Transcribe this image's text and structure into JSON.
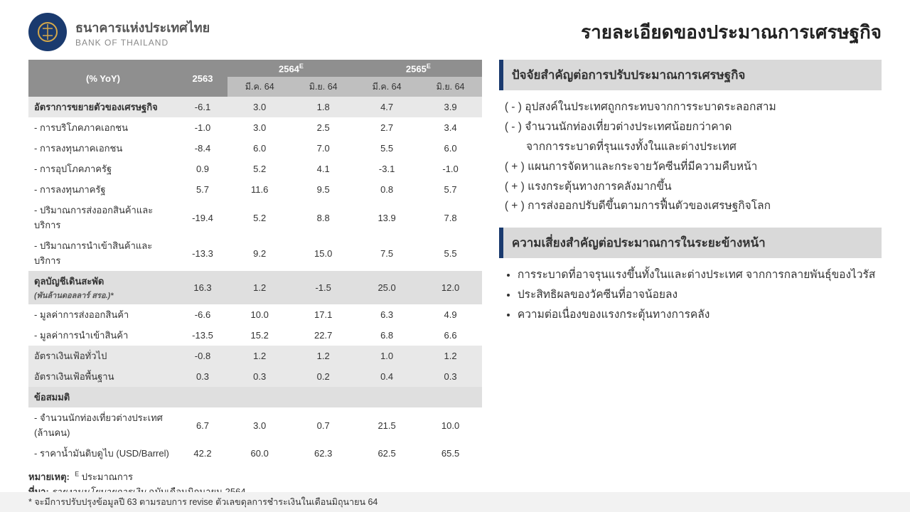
{
  "logo": {
    "th": "ธนาคารแห่งประเทศไทย",
    "en": "BANK OF THAILAND"
  },
  "title": "รายละเอียดของประมาณการเศรษฐกิจ",
  "table": {
    "head": {
      "pct": "(% YoY)",
      "y2563": "2563",
      "y2564": "2564",
      "y2565": "2565",
      "sup": "E",
      "mar64": "มี.ค. 64",
      "jun64": "มิ.ย. 64"
    },
    "rows": [
      {
        "cls": "shade-gdp row-section",
        "label": "อัตราการขยายตัวของเศรษฐกิจ",
        "v": [
          "-6.1",
          "3.0",
          "1.8",
          "4.7",
          "3.9"
        ]
      },
      {
        "cls": "",
        "label": "- การบริโภคภาคเอกชน",
        "v": [
          "-1.0",
          "3.0",
          "2.5",
          "2.7",
          "3.4"
        ]
      },
      {
        "cls": "",
        "label": "- การลงทุนภาคเอกชน",
        "v": [
          "-8.4",
          "6.0",
          "7.0",
          "5.5",
          "6.0"
        ]
      },
      {
        "cls": "",
        "label": "- การอุปโภคภาครัฐ",
        "v": [
          "0.9",
          "5.2",
          "4.1",
          "-3.1",
          "-1.0"
        ]
      },
      {
        "cls": "",
        "label": "- การลงทุนภาครัฐ",
        "v": [
          "5.7",
          "11.6",
          "9.5",
          "0.8",
          "5.7"
        ]
      },
      {
        "cls": "",
        "label": "- ปริมาณการส่งออกสินค้าและบริการ",
        "v": [
          "-19.4",
          "5.2",
          "8.8",
          "13.9",
          "7.8"
        ]
      },
      {
        "cls": "",
        "label": "- ปริมาณการนำเข้าสินค้าและบริการ",
        "v": [
          "-13.3",
          "9.2",
          "15.0",
          "7.5",
          "5.5"
        ]
      },
      {
        "cls": "shade-ca row-section",
        "label": "ดุลบัญชีเดินสะพัด<br><span class='small-note'>(พันล้านดอลลาร์ สรอ.)*</span>",
        "v": [
          "16.3",
          "1.2",
          "-1.5",
          "25.0",
          "12.0"
        ]
      },
      {
        "cls": "",
        "label": "- มูลค่าการส่งออกสินค้า",
        "v": [
          "-6.6",
          "10.0",
          "17.1",
          "6.3",
          "4.9"
        ]
      },
      {
        "cls": "",
        "label": "- มูลค่าการนำเข้าสินค้า",
        "v": [
          "-13.5",
          "15.2",
          "22.7",
          "6.8",
          "6.6"
        ]
      },
      {
        "cls": "shade-inf",
        "label": "อัตราเงินเฟ้อทั่วไป",
        "v": [
          "-0.8",
          "1.2",
          "1.2",
          "1.0",
          "1.2"
        ]
      },
      {
        "cls": "shade-inf",
        "label": "อัตราเงินเฟ้อพื้นฐาน",
        "v": [
          "0.3",
          "0.3",
          "0.2",
          "0.4",
          "0.3"
        ]
      },
      {
        "cls": "shade-assump row-section",
        "label": "ข้อสมมติ",
        "v": [
          "",
          "",
          "",
          "",
          ""
        ]
      },
      {
        "cls": "",
        "label": "- จำนวนนักท่องเที่ยวต่างประเทศ (ล้านคน)",
        "v": [
          "6.7",
          "3.0",
          "0.7",
          "21.5",
          "10.0"
        ]
      },
      {
        "cls": "",
        "label": "- ราคาน้ำมันดิบดูไบ (USD/Barrel)",
        "v": [
          "42.2",
          "60.0",
          "62.3",
          "62.5",
          "65.5"
        ]
      }
    ]
  },
  "footnote": {
    "l1a": "หมายเหตุ:",
    "l1b": "ประมาณการ",
    "l1sup": "E",
    "l2a": "ที่มา:",
    "l2b": "รายงานนโยบายการเงิน",
    "l2c": "ฉบับเดือนมิถุนายน 2564"
  },
  "bottom": "* จะมีการปรับปรุงข้อมูลปี 63 ตามรอบการ revise ตัวเลขดุลการชำระเงินในเดือนมิถุนายน 64",
  "panel1": {
    "title": "ปัจจัยสำคัญต่อการปรับประมาณการเศรษฐกิจ",
    "items": [
      "( - ) อุปสงค์ในประเทศถูกกระทบจากการระบาดระลอกสาม",
      "( - ) จำนวนนักท่องเที่ยวต่างประเทศน้อยกว่าคาด",
      "       จากการระบาดที่รุนแรงทั้งในและต่างประเทศ",
      "( + ) แผนการจัดหาและกระจายวัคซีนที่มีความคืบหน้า",
      "( + ) แรงกระตุ้นทางการคลังมากขึ้น",
      "( + ) การส่งออกปรับดีขึ้นตามการฟื้นตัวของเศรษฐกิจโลก"
    ]
  },
  "panel2": {
    "title": "ความเสี่ยงสำคัญต่อประมาณการในระยะข้างหน้า",
    "items": [
      "การระบาดที่อาจรุนแรงขึ้นทั้งในและต่างประเทศ จากการกลายพันธุ์ของไวรัส",
      "ประสิทธิผลของวัคซีนที่อาจน้อยลง",
      "ความต่อเนื่องของแรงกระตุ้นทางการคลัง"
    ]
  },
  "colors": {
    "brand_navy": "#1a3a6e",
    "header_gray": "#8f8f8f",
    "subheader_gray": "#bfbfbf",
    "panel_gray": "#d9d9d9"
  }
}
